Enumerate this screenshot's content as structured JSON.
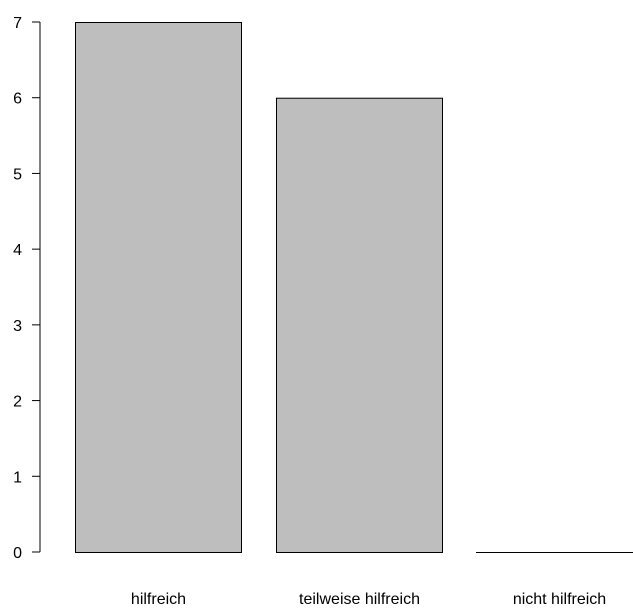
{
  "chart_data": {
    "type": "bar",
    "categories": [
      "hilfreich",
      "teilweise hilfreich",
      "nicht hilfreich"
    ],
    "values": [
      7,
      6,
      0
    ],
    "ylim": [
      0,
      7
    ],
    "yticks": [
      0,
      1,
      2,
      3,
      4,
      5,
      6,
      7
    ],
    "grid": false,
    "legend": "none",
    "bar_color": "#bebebe",
    "edge_color": "#000000"
  }
}
